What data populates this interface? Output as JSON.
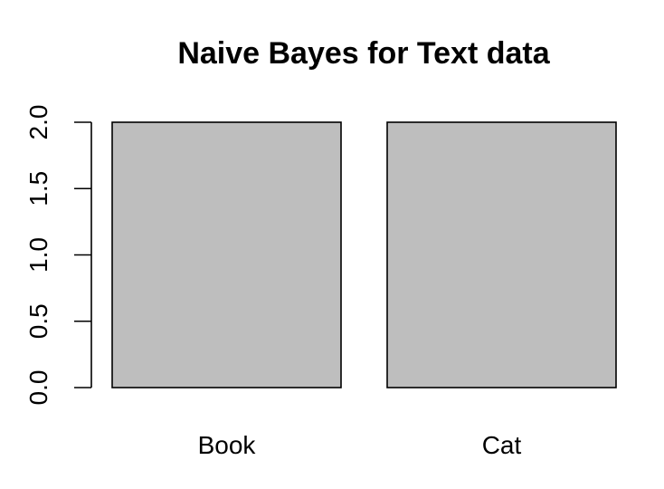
{
  "chart_data": {
    "type": "bar",
    "title": "Naive Bayes for Text data",
    "xlabel": "",
    "ylabel": "",
    "categories": [
      "Book",
      "Cat"
    ],
    "values": [
      2,
      2
    ],
    "ylim": [
      0,
      2
    ],
    "yticks": [
      "0.0",
      "0.5",
      "1.0",
      "1.5",
      "2.0"
    ],
    "bar_color": "#bebebe",
    "grid": false,
    "legend": "none"
  }
}
